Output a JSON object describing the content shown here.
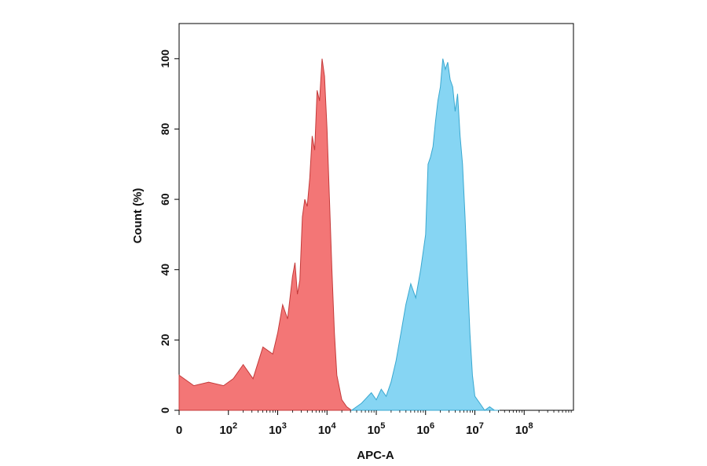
{
  "chart_data": {
    "type": "area",
    "xlabel": "APC-A",
    "ylabel": "Count (%)",
    "x_scale": "biexponential",
    "xlim_decades": [
      0,
      8
    ],
    "ylim": [
      0,
      110
    ],
    "x_ticks": [
      {
        "value": 0,
        "label": "0"
      },
      {
        "value": 100,
        "label": "10",
        "exp": "2"
      },
      {
        "value": 1000,
        "label": "10",
        "exp": "3"
      },
      {
        "value": 10000,
        "label": "10",
        "exp": "4"
      },
      {
        "value": 100000,
        "label": "10",
        "exp": "5"
      },
      {
        "value": 1000000,
        "label": "10",
        "exp": "6"
      },
      {
        "value": 10000000,
        "label": "10",
        "exp": "7"
      },
      {
        "value": 100000000,
        "label": "10",
        "exp": "8"
      }
    ],
    "y_ticks": [
      0,
      20,
      40,
      60,
      80,
      100
    ],
    "grid": false,
    "legend": "none",
    "series": [
      {
        "color": "#f26f6f",
        "stroke": "#c43a3a",
        "x_log10": [
          0.0,
          0.3,
          0.6,
          0.9,
          1.1,
          1.3,
          1.5,
          1.7,
          1.9,
          2.0,
          2.1,
          2.2,
          2.3,
          2.35,
          2.4,
          2.45,
          2.5,
          2.55,
          2.6,
          2.65,
          2.7,
          2.75,
          2.8,
          2.85,
          2.9,
          2.95,
          3.0,
          3.05,
          3.1,
          3.15,
          3.2,
          3.3,
          3.4,
          3.5
        ],
        "y": [
          10,
          7,
          8,
          7,
          9,
          13,
          9,
          18,
          16,
          22,
          30,
          26,
          38,
          42,
          33,
          37,
          55,
          60,
          58,
          66,
          78,
          74,
          91,
          88,
          100,
          95,
          80,
          60,
          40,
          22,
          10,
          3,
          1,
          0
        ]
      },
      {
        "color": "#7fd3f2",
        "stroke": "#3aa8d0",
        "x_log10": [
          3.5,
          3.7,
          3.9,
          4.0,
          4.1,
          4.2,
          4.3,
          4.4,
          4.5,
          4.6,
          4.7,
          4.8,
          4.9,
          5.0,
          5.05,
          5.1,
          5.15,
          5.2,
          5.25,
          5.3,
          5.35,
          5.4,
          5.45,
          5.5,
          5.55,
          5.6,
          5.65,
          5.7,
          5.75,
          5.8,
          5.85,
          5.9,
          5.95,
          6.0,
          6.1,
          6.2,
          6.3,
          6.4,
          6.5
        ],
        "y": [
          0,
          2,
          5,
          3,
          6,
          4,
          8,
          14,
          22,
          30,
          36,
          32,
          40,
          50,
          70,
          72,
          75,
          82,
          88,
          92,
          100,
          97,
          99,
          94,
          92,
          85,
          90,
          78,
          70,
          55,
          38,
          22,
          10,
          4,
          2,
          0,
          1,
          0,
          0
        ]
      }
    ]
  }
}
